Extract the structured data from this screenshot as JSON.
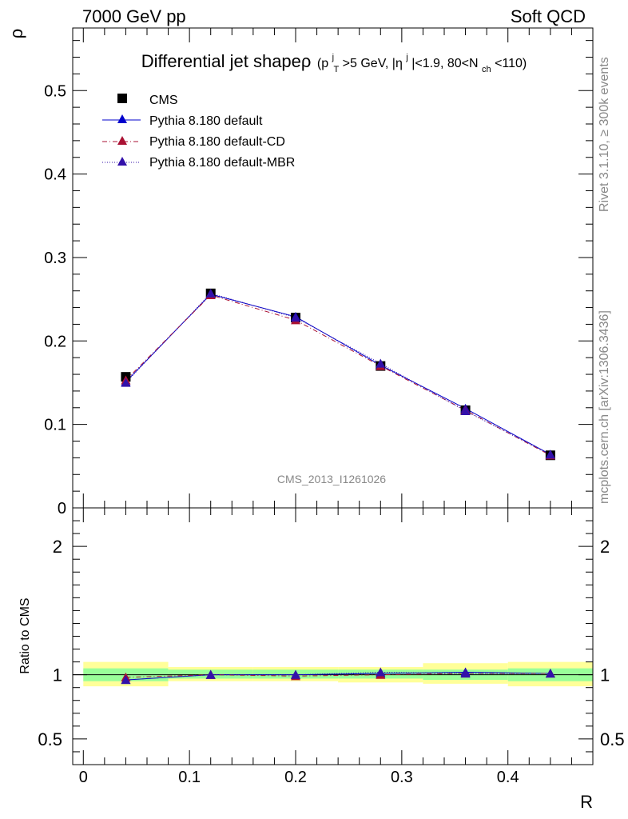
{
  "header": {
    "left_label": "7000 GeV pp",
    "right_label": "Soft QCD"
  },
  "side_labels": {
    "rivet": "Rivet 3.1.10, ≥ 300k events",
    "mcplots": "mcplots.cern.ch [arXiv:1306.3436]"
  },
  "analysis_id": "CMS_2013_I1261026",
  "colors": {
    "cms": "#000000",
    "default": "#0000cc",
    "default_cd": "#aa1133",
    "default_mbr": "#3311aa",
    "band_inner": "#99ff99",
    "band_outer": "#ffff99"
  },
  "chart_data": [
    {
      "type": "line",
      "title": "Differential jet shapeρ (p_T^j>5 GeV, |η^j|<1.9, 80<N_ch<110)",
      "title_parts": {
        "main": "Differential jet shapeρ",
        "cut_open": "(p",
        "pt_sup": "j",
        "pt_sub": "T",
        "cut_pt": ">5 GeV, |η",
        "eta_sup": "j",
        "cut_eta": "|<1.9, 80<N",
        "nch_sub": "ch",
        "cut_end": "<110)"
      },
      "ylabel": "ρ",
      "xlim": [
        -0.01,
        0.48
      ],
      "ylim": [
        0,
        0.575
      ],
      "yticks": [
        0,
        0.1,
        0.2,
        0.3,
        0.4,
        0.5
      ],
      "ytick_labels": [
        "0",
        "0.1",
        "0.2",
        "0.3",
        "0.4",
        "0.5"
      ],
      "legend_position": "top-left",
      "x": [
        0.04,
        0.12,
        0.2,
        0.28,
        0.36,
        0.44
      ],
      "series": [
        {
          "name": "CMS",
          "marker": "square",
          "values": [
            0.157,
            0.257,
            0.228,
            0.17,
            0.117,
            0.063
          ]
        },
        {
          "name": "Pythia 8.180 default",
          "marker": "triangle",
          "line": "solid",
          "values": [
            0.151,
            0.256,
            0.229,
            0.171,
            0.119,
            0.064
          ]
        },
        {
          "name": "Pythia 8.180 default-CD",
          "marker": "triangle",
          "line": "dashed",
          "values": [
            0.153,
            0.255,
            0.225,
            0.17,
            0.117,
            0.063
          ]
        },
        {
          "name": "Pythia 8.180 default-MBR",
          "marker": "triangle",
          "line": "dotted",
          "values": [
            0.15,
            0.257,
            0.228,
            0.173,
            0.116,
            0.064
          ]
        }
      ]
    },
    {
      "type": "line",
      "xlabel": "R",
      "ylabel": "Ratio to CMS",
      "xlim": [
        -0.01,
        0.48
      ],
      "ylim": [
        0.3,
        2.3
      ],
      "xticks": [
        0,
        0.1,
        0.2,
        0.3,
        0.4
      ],
      "xtick_labels": [
        "0",
        "0.1",
        "0.2",
        "0.3",
        "0.4"
      ],
      "yticks": [
        0.5,
        1,
        2
      ],
      "ytick_labels": [
        "0.5",
        "1",
        "2"
      ],
      "bins": [
        [
          0.0,
          0.08
        ],
        [
          0.08,
          0.16
        ],
        [
          0.16,
          0.24
        ],
        [
          0.24,
          0.32
        ],
        [
          0.32,
          0.4
        ],
        [
          0.4,
          0.48
        ]
      ],
      "band_inner": [
        [
          0.95,
          1.05
        ],
        [
          0.97,
          1.04
        ],
        [
          0.97,
          1.04
        ],
        [
          0.97,
          1.04
        ],
        [
          0.96,
          1.04
        ],
        [
          0.95,
          1.05
        ]
      ],
      "band_outer": [
        [
          0.91,
          1.1
        ],
        [
          0.95,
          1.06
        ],
        [
          0.95,
          1.06
        ],
        [
          0.94,
          1.06
        ],
        [
          0.93,
          1.09
        ],
        [
          0.91,
          1.1
        ]
      ],
      "x": [
        0.04,
        0.12,
        0.2,
        0.28,
        0.36,
        0.44
      ],
      "series": [
        {
          "name": "Pythia 8.180 default",
          "line": "solid",
          "values": [
            0.96,
            1.0,
            1.0,
            1.01,
            1.02,
            1.01
          ]
        },
        {
          "name": "Pythia 8.180 default-CD",
          "line": "dashed",
          "values": [
            0.98,
            1.0,
            0.99,
            1.0,
            1.01,
            1.01
          ]
        },
        {
          "name": "Pythia 8.180 default-MBR",
          "line": "dotted",
          "values": [
            0.96,
            1.0,
            1.0,
            1.02,
            1.01,
            1.01
          ]
        }
      ]
    }
  ]
}
